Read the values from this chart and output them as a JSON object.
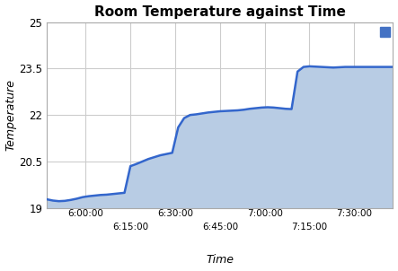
{
  "title": "Room Temperature against Time",
  "xlabel": "Time",
  "ylabel": "Temperature",
  "line_color": "#3366cc",
  "fill_color": "#b8cce4",
  "legend_color": "#4472c4",
  "background_color": "#ffffff",
  "grid_color": "#cccccc",
  "ylim": [
    19,
    25
  ],
  "xlim": [
    347,
    463
  ],
  "ytick_vals": [
    19,
    20.5,
    22,
    23.5,
    25
  ],
  "xtick_positions": [
    360,
    375,
    390,
    405,
    420,
    435,
    450
  ],
  "xtick_labels": [
    "6:00:00",
    "6:15:00",
    "6:30:00",
    "6:45:00",
    "7:00:00",
    "7:15:00",
    "7:30:00"
  ],
  "time_minutes": [
    347,
    349,
    351,
    353,
    355,
    357,
    359,
    361,
    363,
    365,
    367,
    369,
    371,
    373,
    375,
    377,
    379,
    381,
    383,
    385,
    387,
    389,
    391,
    393,
    395,
    397,
    399,
    401,
    403,
    405,
    407,
    409,
    411,
    413,
    415,
    417,
    419,
    421,
    423,
    425,
    427,
    429,
    431,
    433,
    435,
    437,
    439,
    441,
    443,
    445,
    447,
    449,
    451,
    453,
    455,
    457,
    459,
    461,
    463
  ],
  "temperatures": [
    19.28,
    19.24,
    19.22,
    19.23,
    19.26,
    19.3,
    19.35,
    19.38,
    19.4,
    19.42,
    19.43,
    19.45,
    19.47,
    19.49,
    20.35,
    20.42,
    20.5,
    20.58,
    20.64,
    20.7,
    20.74,
    20.78,
    21.6,
    21.9,
    22.0,
    22.02,
    22.05,
    22.08,
    22.1,
    22.12,
    22.13,
    22.14,
    22.15,
    22.17,
    22.2,
    22.22,
    22.24,
    22.25,
    22.24,
    22.22,
    22.2,
    22.19,
    23.4,
    23.55,
    23.57,
    23.56,
    23.55,
    23.54,
    23.53,
    23.54,
    23.55,
    23.55,
    23.55,
    23.55,
    23.55,
    23.55,
    23.55,
    23.55,
    23.55
  ]
}
